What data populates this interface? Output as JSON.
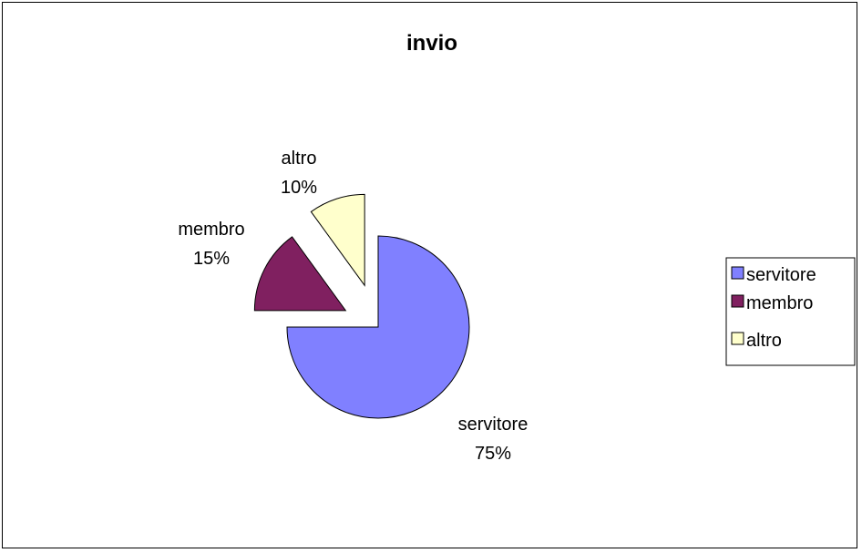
{
  "chart_data": {
    "type": "pie",
    "title": "invio",
    "categories": [
      "servitore",
      "membro",
      "altro"
    ],
    "values": [
      75,
      15,
      10
    ],
    "value_labels": [
      "75%",
      "15%",
      "10%"
    ],
    "colors": [
      "#8080FF",
      "#802060",
      "#FFFFCC"
    ],
    "exploded": true,
    "legend_position": "right"
  }
}
